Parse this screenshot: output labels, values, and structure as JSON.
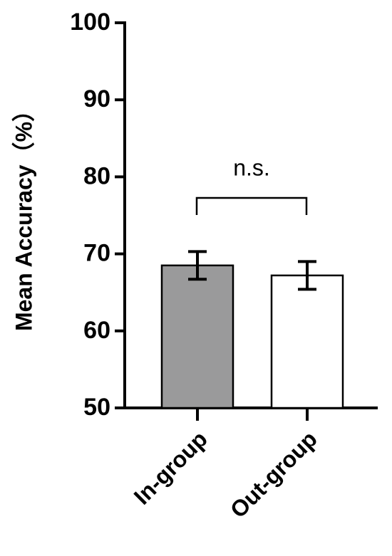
{
  "chart_data": {
    "type": "bar",
    "y_label": "Mean Accuracy（%）",
    "annotation": "n.s.",
    "categories": [
      "In-group",
      "Out-group"
    ],
    "values": [
      68.5,
      67.2
    ],
    "errors": [
      1.8,
      1.8
    ],
    "colors": [
      "#9a9a9b",
      "#ffffff"
    ],
    "ylim": [
      50,
      100
    ],
    "yticks": [
      50,
      60,
      70,
      80,
      90,
      100
    ]
  }
}
